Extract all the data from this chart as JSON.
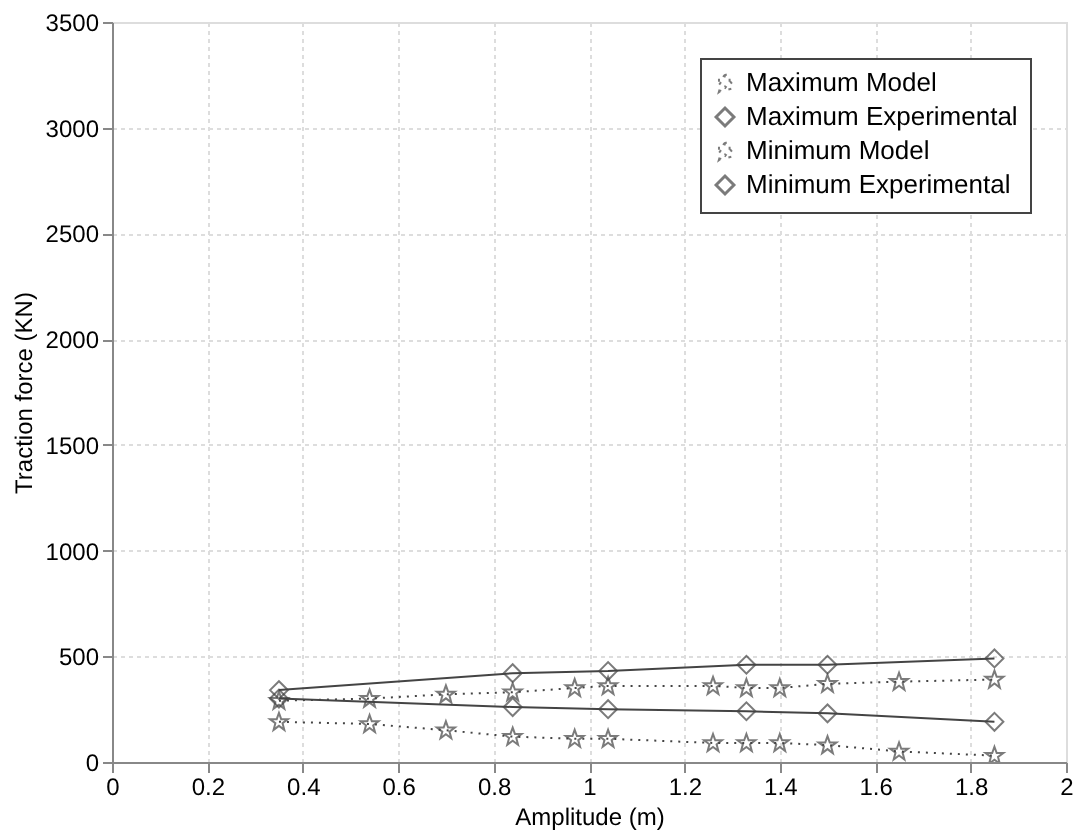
{
  "chart_data": {
    "type": "line",
    "xlabel": "Amplitude (m)",
    "ylabel": "Traction force (KN)",
    "xlim": [
      0,
      2
    ],
    "xticks": [
      0,
      0.2,
      0.4,
      0.6,
      0.8,
      1,
      1.2,
      1.4,
      1.6,
      1.8,
      2
    ],
    "ylim": [
      0,
      3500
    ],
    "yticks": [
      0,
      500,
      1000,
      1500,
      2000,
      2500,
      3000,
      3500
    ],
    "grid": true,
    "legend": "top right",
    "series": [
      {
        "name": "Maximum Model",
        "color": "#444444",
        "marker": "star",
        "line_style": "dotted",
        "x": [
          0.35,
          0.54,
          0.7,
          0.84,
          0.97,
          1.04,
          1.26,
          1.33,
          1.4,
          1.5,
          1.65,
          1.85
        ],
        "values": [
          290,
          300,
          320,
          330,
          350,
          360,
          360,
          350,
          350,
          370,
          380,
          390
        ]
      },
      {
        "name": "Maximum Experimental",
        "color": "#444444",
        "marker": "diamond",
        "line_style": "solid",
        "x": [
          0.35,
          0.84,
          1.04,
          1.33,
          1.5,
          1.85
        ],
        "values": [
          340,
          420,
          430,
          460,
          460,
          490
        ]
      },
      {
        "name": "Minimum Model",
        "color": "#444444",
        "marker": "star",
        "line_style": "dotted",
        "x": [
          0.35,
          0.54,
          0.7,
          0.84,
          0.97,
          1.04,
          1.26,
          1.33,
          1.4,
          1.5,
          1.65,
          1.85
        ],
        "values": [
          190,
          180,
          150,
          120,
          110,
          110,
          90,
          90,
          90,
          80,
          50,
          30
        ]
      },
      {
        "name": "Minimum Experimental",
        "color": "#444444",
        "marker": "diamond",
        "line_style": "solid",
        "x": [
          0.35,
          0.84,
          1.04,
          1.33,
          1.5,
          1.85
        ],
        "values": [
          300,
          260,
          250,
          240,
          230,
          190
        ]
      }
    ]
  }
}
